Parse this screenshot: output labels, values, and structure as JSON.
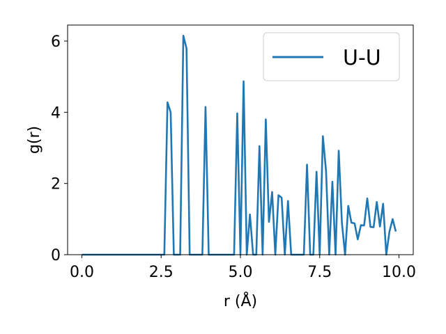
{
  "chart_data": {
    "type": "line",
    "xlabel": "r (Å)",
    "ylabel": "g(r)",
    "xlim": [
      -0.45,
      10.45
    ],
    "ylim": [
      0,
      6.45
    ],
    "xticks": [
      0.0,
      2.5,
      5.0,
      7.5,
      10.0
    ],
    "xtick_labels": [
      "0.0",
      "2.5",
      "5.0",
      "7.5",
      "10.0"
    ],
    "yticks": [
      0,
      2,
      4,
      6
    ],
    "ytick_labels": [
      "0",
      "2",
      "4",
      "6"
    ],
    "legend_position": "top-right",
    "grid": false,
    "series": [
      {
        "name": "U-U",
        "color": "#1f77b4",
        "x": [
          0.0,
          0.1,
          0.2,
          0.3,
          0.4,
          0.5,
          0.6,
          0.7,
          0.8,
          0.9,
          1.0,
          1.1,
          1.2,
          1.3,
          1.4,
          1.5,
          1.6,
          1.7,
          1.8,
          1.9,
          2.0,
          2.1,
          2.2,
          2.3,
          2.4,
          2.5,
          2.6,
          2.7,
          2.8,
          2.9,
          3.0,
          3.1,
          3.2,
          3.3,
          3.4,
          3.5,
          3.6,
          3.7,
          3.8,
          3.9,
          4.0,
          4.1,
          4.2,
          4.3,
          4.4,
          4.5,
          4.6,
          4.7,
          4.8,
          4.9,
          5.0,
          5.1,
          5.2,
          5.3,
          5.4,
          5.5,
          5.6,
          5.7,
          5.8,
          5.9,
          6.0,
          6.1,
          6.2,
          6.3,
          6.4,
          6.5,
          6.6,
          6.7,
          6.8,
          6.9,
          7.0,
          7.1,
          7.2,
          7.3,
          7.4,
          7.5,
          7.6,
          7.7,
          7.8,
          7.9,
          8.0,
          8.1,
          8.2,
          8.3,
          8.4,
          8.5,
          8.6,
          8.7,
          8.8,
          8.9,
          9.0,
          9.1,
          9.2,
          9.3,
          9.4,
          9.5,
          9.6,
          9.7,
          9.8,
          9.9
        ],
        "y": [
          0,
          0,
          0,
          0,
          0,
          0,
          0,
          0,
          0,
          0,
          0,
          0,
          0,
          0,
          0,
          0,
          0,
          0,
          0,
          0,
          0,
          0,
          0,
          0,
          0,
          0,
          0,
          4.28,
          4.0,
          0,
          0,
          0,
          6.15,
          5.8,
          0,
          0,
          0,
          0,
          0,
          4.15,
          0,
          0,
          0,
          0,
          0,
          0,
          0,
          0,
          0,
          3.97,
          0,
          4.87,
          0,
          1.13,
          0,
          0,
          3.05,
          0,
          3.8,
          0.92,
          1.76,
          0,
          1.67,
          1.6,
          0,
          1.51,
          0,
          0,
          0,
          0,
          0,
          2.53,
          0,
          0,
          2.33,
          0,
          3.33,
          2.35,
          0,
          2.05,
          0,
          2.92,
          0.9,
          0,
          1.37,
          0.9,
          0.88,
          0.43,
          0.83,
          0.82,
          1.58,
          0.78,
          0.77,
          1.48,
          0.79,
          1.43,
          0,
          0.65,
          1.0,
          0.65
        ]
      }
    ]
  }
}
